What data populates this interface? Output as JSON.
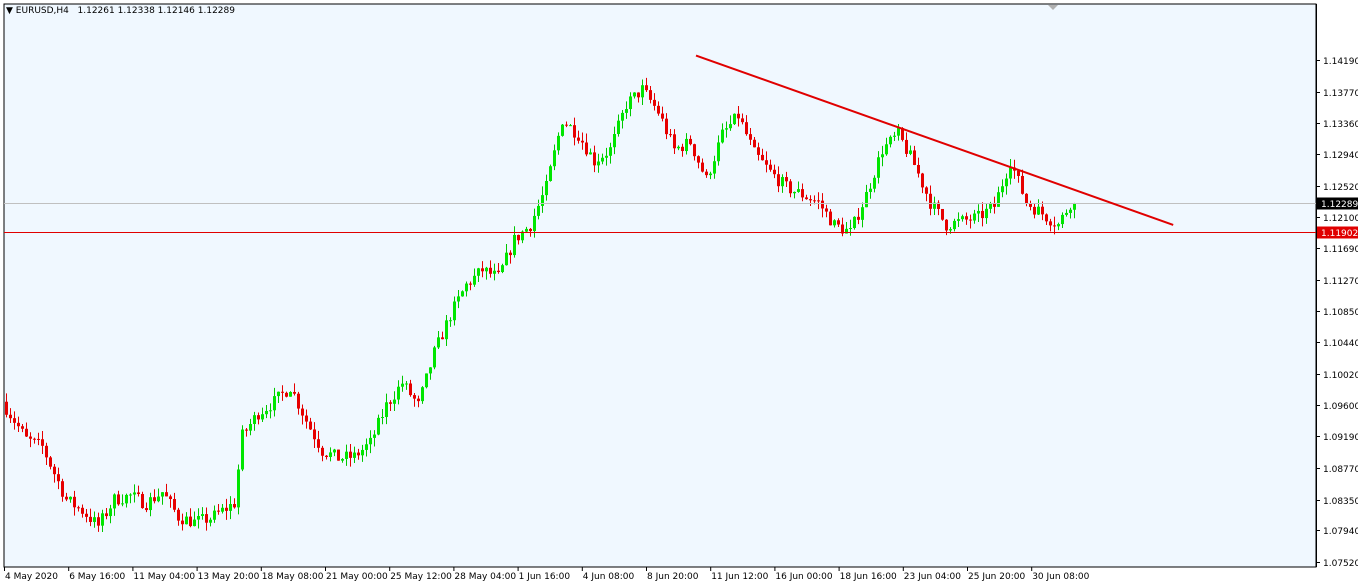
{
  "header": {
    "dropdown_glyph": "▼",
    "symbol": "EURUSD,H4",
    "ohlc": "1.12261 1.12338 1.12146 1.12289"
  },
  "colors": {
    "background": "#f0f8ff",
    "frame": "#000000",
    "bull": "#00e600",
    "bear": "#e60000",
    "wick": "#00c800",
    "trendline": "#e00000",
    "support": "#e00000",
    "price_line": "#c0c0c0",
    "price_tag_bg": "#000000",
    "support_tag_bg": "#e00000"
  },
  "chart_data": {
    "type": "candlestick",
    "symbol": "EURUSD",
    "timeframe": "H4",
    "y_range": [
      1.0752,
      1.1455
    ],
    "y_ticks": [
      "1.14190",
      "1.13770",
      "1.13360",
      "1.12940",
      "1.12520",
      "1.12100",
      "1.11690",
      "1.11270",
      "1.10850",
      "1.10440",
      "1.10020",
      "1.09600",
      "1.09190",
      "1.08770",
      "1.08350",
      "1.07940",
      "1.07520"
    ],
    "x_ticks": [
      "4 May 2020",
      "6 May 16:00",
      "11 May 04:00",
      "13 May 20:00",
      "18 May 08:00",
      "21 May 00:00",
      "25 May 12:00",
      "28 May 04:00",
      "1 Jun 16:00",
      "4 Jun 08:00",
      "8 Jun 20:00",
      "11 Jun 12:00",
      "16 Jun 00:00",
      "18 Jun 16:00",
      "23 Jun 04:00",
      "25 Jun 20:00",
      "30 Jun 08:00"
    ],
    "current_price": "1.12289",
    "support_level": "1.11902",
    "trendline": {
      "start": {
        "x_tick": "8 Jun 20:00",
        "price": 1.1425
      },
      "end": {
        "x_tick": "30 Jun 08:00",
        "price": 1.12
      }
    },
    "path_points": [
      [
        0,
        1.0965
      ],
      [
        6,
        1.0915
      ],
      [
        10,
        1.0905
      ],
      [
        16,
        1.0835
      ],
      [
        20,
        1.082
      ],
      [
        24,
        1.08
      ],
      [
        28,
        1.0835
      ],
      [
        32,
        1.084
      ],
      [
        36,
        1.083
      ],
      [
        40,
        1.0845
      ],
      [
        44,
        1.0812
      ],
      [
        48,
        1.0805
      ],
      [
        52,
        1.081
      ],
      [
        58,
        1.083
      ],
      [
        60,
        1.092
      ],
      [
        64,
        1.095
      ],
      [
        68,
        1.0965
      ],
      [
        72,
        1.0985
      ],
      [
        76,
        1.094
      ],
      [
        80,
        1.09
      ],
      [
        84,
        1.089
      ],
      [
        88,
        1.0892
      ],
      [
        92,
        1.091
      ],
      [
        96,
        1.096
      ],
      [
        100,
        1.099
      ],
      [
        104,
        1.096
      ],
      [
        108,
        1.103
      ],
      [
        112,
        1.108
      ],
      [
        116,
        1.112
      ],
      [
        120,
        1.114
      ],
      [
        124,
        1.113
      ],
      [
        128,
        1.118
      ],
      [
        132,
        1.12
      ],
      [
        136,
        1.125
      ],
      [
        140,
        1.134
      ],
      [
        144,
        1.132
      ],
      [
        148,
        1.1285
      ],
      [
        152,
        1.13
      ],
      [
        156,
        1.136
      ],
      [
        160,
        1.138
      ],
      [
        164,
        1.135
      ],
      [
        168,
        1.13
      ],
      [
        172,
        1.131
      ],
      [
        176,
        1.126
      ],
      [
        180,
        1.132
      ],
      [
        184,
        1.1345
      ],
      [
        188,
        1.1295
      ],
      [
        192,
        1.127
      ],
      [
        196,
        1.125
      ],
      [
        200,
        1.124
      ],
      [
        204,
        1.123
      ],
      [
        208,
        1.12
      ],
      [
        212,
        1.119
      ],
      [
        216,
        1.124
      ],
      [
        220,
        1.13
      ],
      [
        224,
        1.132
      ],
      [
        228,
        1.128
      ],
      [
        232,
        1.123
      ],
      [
        236,
        1.12
      ],
      [
        240,
        1.1205
      ],
      [
        244,
        1.121
      ],
      [
        248,
        1.1225
      ],
      [
        252,
        1.1285
      ],
      [
        256,
        1.123
      ],
      [
        260,
        1.1215
      ],
      [
        264,
        1.12
      ],
      [
        267,
        1.1229
      ]
    ]
  }
}
